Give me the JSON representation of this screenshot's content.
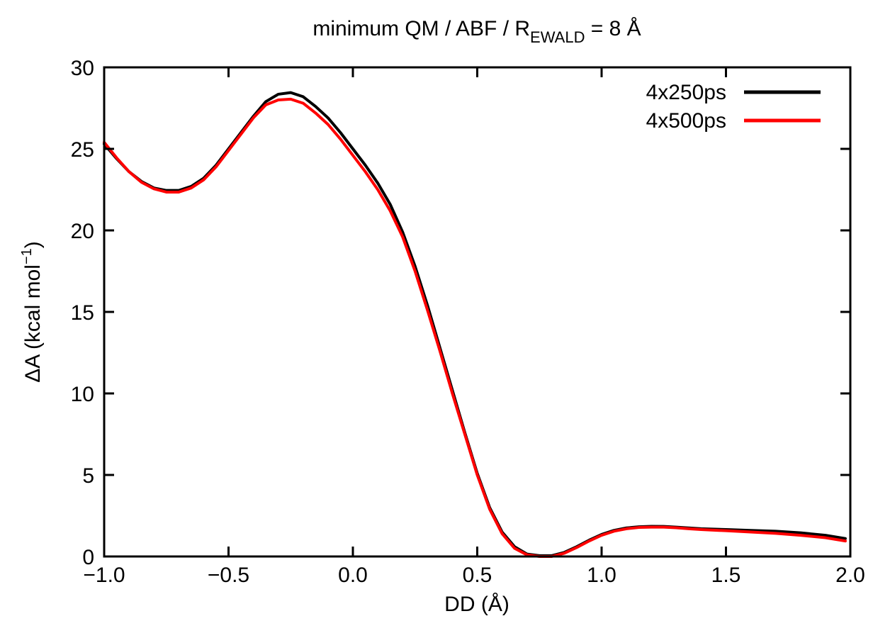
{
  "chart_data": {
    "type": "line",
    "title": {
      "main": "minimum QM / ABF / R",
      "subscript": "EWALD",
      "suffix": " = 8 Å"
    },
    "xlabel": "DD (Å)",
    "ylabel": {
      "main": "ΔA (kcal mol",
      "superscript": "−1",
      "suffix": ")"
    },
    "xlim": [
      -1.0,
      2.0
    ],
    "ylim": [
      0,
      30
    ],
    "x_ticks": [
      -1.0,
      -0.5,
      0.0,
      0.5,
      1.0,
      1.5,
      2.0
    ],
    "x_tick_labels": [
      "−1.0",
      "−0.5",
      "0.0",
      "0.5",
      "1.0",
      "1.5",
      "2.0"
    ],
    "y_ticks": [
      0,
      5,
      10,
      15,
      20,
      25,
      30
    ],
    "y_tick_labels": [
      "0",
      "5",
      "10",
      "15",
      "20",
      "25",
      "30"
    ],
    "grid": false,
    "legend_position": "top-right",
    "series": [
      {
        "name": "4x250ps",
        "color": "#000000",
        "x": [
          -1.0,
          -0.95,
          -0.9,
          -0.85,
          -0.8,
          -0.75,
          -0.7,
          -0.65,
          -0.6,
          -0.55,
          -0.5,
          -0.45,
          -0.4,
          -0.35,
          -0.3,
          -0.25,
          -0.2,
          -0.15,
          -0.1,
          -0.05,
          0.0,
          0.05,
          0.1,
          0.15,
          0.2,
          0.25,
          0.3,
          0.35,
          0.4,
          0.45,
          0.5,
          0.55,
          0.6,
          0.65,
          0.7,
          0.75,
          0.8,
          0.85,
          0.9,
          0.95,
          1.0,
          1.05,
          1.1,
          1.15,
          1.2,
          1.25,
          1.3,
          1.35,
          1.4,
          1.5,
          1.6,
          1.7,
          1.8,
          1.9,
          1.98
        ],
        "y": [
          25.3,
          24.4,
          23.6,
          23.0,
          22.6,
          22.45,
          22.45,
          22.7,
          23.2,
          24.0,
          25.0,
          26.0,
          27.0,
          27.9,
          28.35,
          28.45,
          28.2,
          27.6,
          26.9,
          26.0,
          25.0,
          24.0,
          22.9,
          21.6,
          19.9,
          17.8,
          15.4,
          12.8,
          10.2,
          7.6,
          5.1,
          3.0,
          1.5,
          0.6,
          0.15,
          0.05,
          0.05,
          0.25,
          0.6,
          1.0,
          1.35,
          1.6,
          1.75,
          1.82,
          1.85,
          1.84,
          1.8,
          1.75,
          1.7,
          1.65,
          1.6,
          1.55,
          1.45,
          1.3,
          1.1
        ]
      },
      {
        "name": "4x500ps",
        "color": "#ff0000",
        "x": [
          -1.0,
          -0.95,
          -0.9,
          -0.85,
          -0.8,
          -0.75,
          -0.7,
          -0.65,
          -0.6,
          -0.55,
          -0.5,
          -0.45,
          -0.4,
          -0.35,
          -0.3,
          -0.25,
          -0.2,
          -0.15,
          -0.1,
          -0.05,
          0.0,
          0.05,
          0.1,
          0.15,
          0.2,
          0.25,
          0.3,
          0.35,
          0.4,
          0.45,
          0.5,
          0.55,
          0.6,
          0.65,
          0.7,
          0.75,
          0.8,
          0.85,
          0.9,
          0.95,
          1.0,
          1.05,
          1.1,
          1.15,
          1.2,
          1.25,
          1.3,
          1.35,
          1.4,
          1.5,
          1.6,
          1.7,
          1.8,
          1.9,
          1.98
        ],
        "y": [
          25.4,
          24.45,
          23.6,
          22.95,
          22.55,
          22.35,
          22.35,
          22.6,
          23.1,
          23.9,
          24.9,
          25.9,
          26.9,
          27.7,
          28.0,
          28.05,
          27.8,
          27.2,
          26.5,
          25.6,
          24.6,
          23.6,
          22.5,
          21.2,
          19.6,
          17.5,
          15.1,
          12.6,
          10.0,
          7.5,
          5.0,
          2.9,
          1.4,
          0.5,
          0.1,
          0.0,
          0.0,
          0.2,
          0.55,
          0.95,
          1.3,
          1.55,
          1.7,
          1.78,
          1.8,
          1.8,
          1.76,
          1.7,
          1.65,
          1.58,
          1.5,
          1.42,
          1.3,
          1.15,
          0.95
        ]
      }
    ]
  }
}
